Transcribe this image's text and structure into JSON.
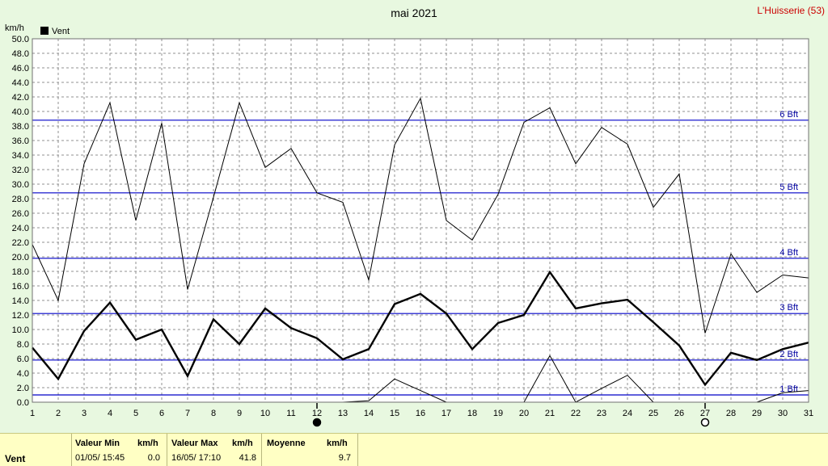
{
  "chart_data": {
    "type": "line",
    "title": "mai 2021",
    "location": "L'Huisserie (53)",
    "ylabel": "km/h",
    "xlabel": "",
    "ylim": [
      0,
      50
    ],
    "yticks": [
      "0.0",
      "2.0",
      "4.0",
      "6.0",
      "8.0",
      "10.0",
      "12.0",
      "14.0",
      "16.0",
      "18.0",
      "20.0",
      "22.0",
      "24.0",
      "26.0",
      "28.0",
      "30.0",
      "32.0",
      "34.0",
      "36.0",
      "38.0",
      "40.0",
      "42.0",
      "44.0",
      "46.0",
      "48.0",
      "50.0"
    ],
    "x": [
      1,
      2,
      3,
      4,
      5,
      6,
      7,
      8,
      9,
      10,
      11,
      12,
      13,
      14,
      15,
      16,
      17,
      18,
      19,
      20,
      21,
      22,
      23,
      24,
      25,
      26,
      27,
      28,
      29,
      30,
      31
    ],
    "grid": true,
    "legend": {
      "entries": [
        "Vent"
      ],
      "placement": "top-left"
    },
    "beaufort_lines": [
      {
        "label": "1 Bft",
        "value": 1.0
      },
      {
        "label": "2 Bft",
        "value": 5.8
      },
      {
        "label": "3 Bft",
        "value": 12.2
      },
      {
        "label": "4 Bft",
        "value": 19.8
      },
      {
        "label": "5 Bft",
        "value": 28.8
      },
      {
        "label": "6 Bft",
        "value": 38.8
      }
    ],
    "moon_phases": [
      {
        "day": 12,
        "phase": "new"
      },
      {
        "day": 27,
        "phase": "full"
      }
    ],
    "series": [
      {
        "name": "Vent",
        "role": "moyenne",
        "values": [
          7.5,
          3.2,
          9.8,
          13.7,
          8.6,
          10.0,
          3.6,
          11.4,
          8.0,
          12.9,
          10.2,
          8.8,
          5.9,
          7.3,
          13.5,
          14.9,
          12.2,
          7.3,
          10.9,
          12.0,
          17.9,
          12.9,
          13.6,
          14.1,
          11.0,
          7.8,
          2.4,
          6.8,
          5.8,
          7.3,
          8.2
        ]
      },
      {
        "role": "max",
        "values": [
          21.7,
          14.0,
          32.8,
          41.2,
          25.0,
          38.4,
          15.5,
          28.2,
          41.2,
          32.3,
          34.9,
          28.8,
          27.5,
          16.8,
          35.4,
          41.8,
          25.0,
          22.3,
          28.6,
          38.5,
          40.5,
          32.8,
          37.8,
          35.5,
          26.8,
          31.4,
          9.5,
          20.4,
          15.1,
          17.5,
          17.1
        ]
      },
      {
        "role": "min",
        "values": [
          0,
          0,
          0,
          0,
          0,
          0,
          0,
          0,
          0,
          0,
          0,
          0,
          0,
          0.2,
          3.2,
          1.6,
          0,
          0,
          0,
          0,
          6.4,
          0,
          1.9,
          3.7,
          0,
          0,
          0,
          0,
          0,
          1.3,
          1.6
        ]
      }
    ],
    "colors": {
      "background": "#e8f8e0",
      "plot": "#ffffff",
      "grid": "#909090",
      "beaufort": "#0000c8",
      "beaufort_label": "#0000a0",
      "line": "#000000",
      "location": "#cc0000"
    }
  },
  "footer": {
    "series_label": "Vent",
    "min_label": "Valeur Min",
    "min_unit": "km/h",
    "min_date": "01/05/  15:45",
    "min_value": "0.0",
    "max_label": "Valeur Max",
    "max_unit": "km/h",
    "max_date": "16/05/  17:10",
    "max_value": "41.8",
    "avg_label": "Moyenne",
    "avg_unit": "km/h",
    "avg_value": "9.7"
  }
}
